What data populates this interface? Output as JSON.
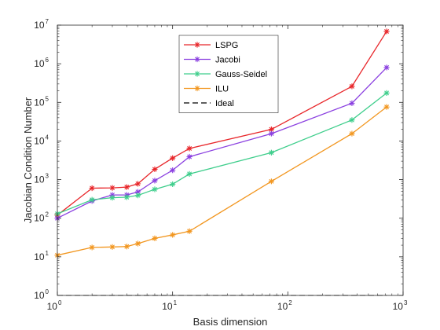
{
  "chart_data": {
    "type": "line",
    "title": "",
    "xlabel": "Basis dimension",
    "ylabel": "Jacobian Condition Number",
    "xscale": "log",
    "yscale": "log",
    "xlim": [
      1,
      1000
    ],
    "ylim": [
      1,
      10000000
    ],
    "grid": false,
    "legend_position": "top-center",
    "x_ticks": [
      {
        "base": "10",
        "exp": "0",
        "value": 1
      },
      {
        "base": "10",
        "exp": "1",
        "value": 10
      },
      {
        "base": "10",
        "exp": "2",
        "value": 100
      },
      {
        "base": "10",
        "exp": "3",
        "value": 1000
      }
    ],
    "y_ticks": [
      {
        "base": "10",
        "exp": "0",
        "value": 1
      },
      {
        "base": "10",
        "exp": "1",
        "value": 10
      },
      {
        "base": "10",
        "exp": "2",
        "value": 100
      },
      {
        "base": "10",
        "exp": "3",
        "value": 1000
      },
      {
        "base": "10",
        "exp": "4",
        "value": 10000
      },
      {
        "base": "10",
        "exp": "5",
        "value": 100000
      },
      {
        "base": "10",
        "exp": "6",
        "value": 1000000
      },
      {
        "base": "10",
        "exp": "7",
        "value": 10000000
      }
    ],
    "x": [
      1,
      2,
      3,
      4,
      5,
      7,
      10,
      14,
      72,
      360,
      720
    ],
    "series": [
      {
        "name": "LSPG",
        "color": "#e8262a",
        "dash": "solid",
        "marker": "asterisk",
        "values": [
          120,
          600,
          610,
          640,
          780,
          1850,
          3600,
          6400,
          20000,
          260000,
          6900000
        ]
      },
      {
        "name": "Jacobi",
        "color": "#8a3fe0",
        "dash": "solid",
        "marker": "asterisk",
        "values": [
          100,
          280,
          400,
          400,
          480,
          940,
          1750,
          3900,
          15500,
          95000,
          800000
        ]
      },
      {
        "name": "Gauss-Seidel",
        "color": "#3fce8c",
        "dash": "solid",
        "marker": "asterisk",
        "values": [
          130,
          300,
          340,
          350,
          390,
          560,
          760,
          1400,
          5000,
          35000,
          175000
        ]
      },
      {
        "name": "ILU",
        "color": "#f2961f",
        "dash": "solid",
        "marker": "asterisk",
        "values": [
          11,
          17.5,
          18,
          18.5,
          22,
          30,
          37,
          46,
          900,
          15500,
          76000
        ]
      },
      {
        "name": "Ideal",
        "color": "#000000",
        "dash": "dashed",
        "marker": "none",
        "values": [
          1,
          1,
          1,
          1,
          1,
          1,
          1,
          1,
          1,
          1,
          1
        ]
      }
    ]
  }
}
